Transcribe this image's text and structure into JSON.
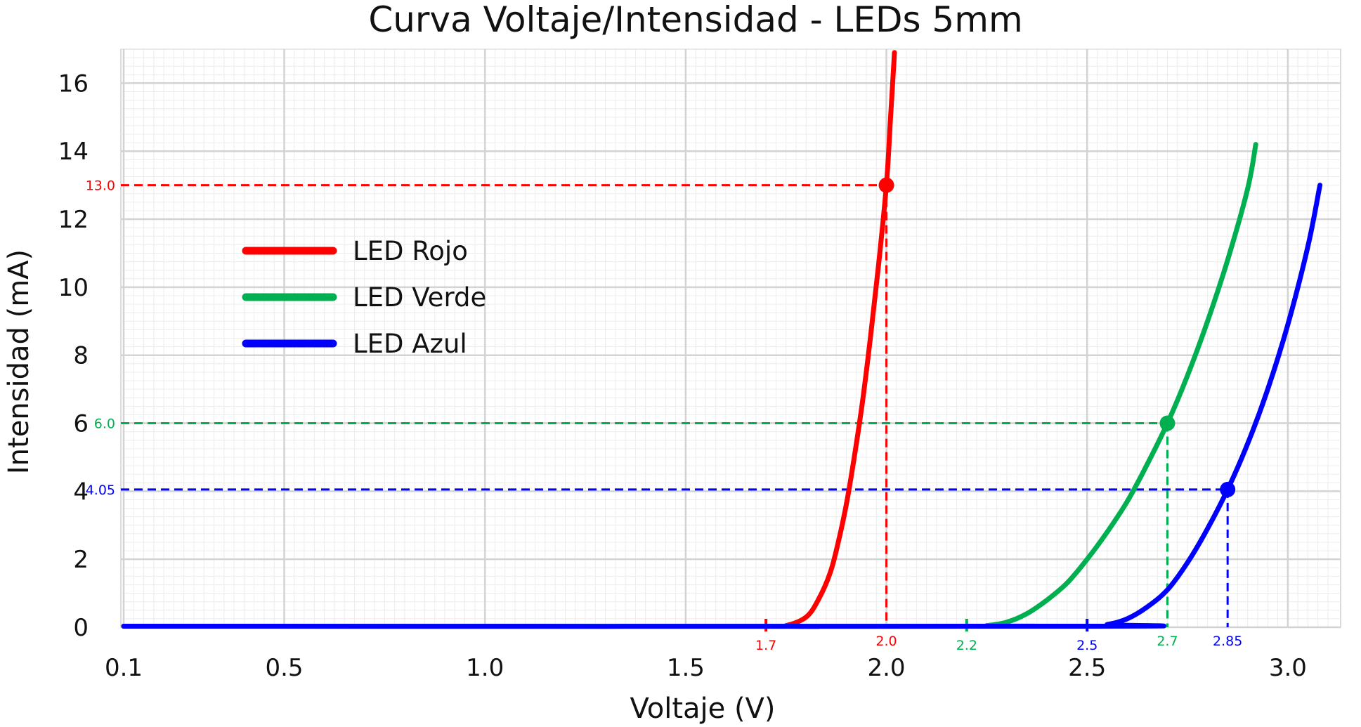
{
  "chart_data": {
    "type": "line",
    "title": "Curva Voltaje/Intensidad - LEDs 5mm",
    "xlabel": "Voltaje (V)",
    "ylabel": "Intensidad (mA)",
    "xlim": [
      0.1,
      3.1
    ],
    "ylim": [
      0,
      17
    ],
    "grid": true,
    "legend_position": "left",
    "x_ticks": [
      0.1,
      0.5,
      1.0,
      1.5,
      2.0,
      2.5,
      3.0
    ],
    "x_tick_labels": [
      "0.1",
      "0.5",
      "1.0",
      "1.5",
      "2.0",
      "2.5",
      "3.0"
    ],
    "y_ticks": [
      0,
      2,
      4,
      6,
      8,
      10,
      12,
      14,
      16
    ],
    "y_tick_labels": [
      "0",
      "2",
      "4",
      "6",
      "8",
      "10",
      "12",
      "14",
      "16"
    ],
    "series": [
      {
        "name": "LED Rojo",
        "legend_label": "LED Rojo",
        "color": "#ff0000",
        "x": [
          0.1,
          1.7,
          1.75,
          1.8,
          1.83,
          1.86,
          1.88,
          1.9,
          1.92,
          1.94,
          1.96,
          1.98,
          2.0,
          2.01,
          2.02
        ],
        "y": [
          0.03,
          0.03,
          0.05,
          0.3,
          0.8,
          1.6,
          2.5,
          3.6,
          5.0,
          6.6,
          8.5,
          10.6,
          13.0,
          14.9,
          16.9
        ]
      },
      {
        "name": "LED Verde",
        "legend_label": "LED Verde",
        "color": "#00b050",
        "x": [
          0.1,
          2.2,
          2.25,
          2.3,
          2.35,
          2.4,
          2.45,
          2.5,
          2.55,
          2.6,
          2.65,
          2.7,
          2.75,
          2.8,
          2.85,
          2.9,
          2.92
        ],
        "y": [
          0.03,
          0.03,
          0.05,
          0.15,
          0.4,
          0.8,
          1.3,
          2.0,
          2.8,
          3.7,
          4.8,
          6.0,
          7.4,
          9.0,
          10.8,
          12.9,
          14.2
        ]
      },
      {
        "name": "LED Azul",
        "legend_label": "LED Azul",
        "color": "#0000ff",
        "x": [
          0.1,
          2.5,
          2.55,
          2.6,
          2.65,
          2.7,
          2.75,
          2.8,
          2.85,
          2.9,
          2.95,
          3.0,
          3.05,
          3.08
        ],
        "y": [
          0.03,
          0.03,
          0.08,
          0.25,
          0.6,
          1.1,
          1.9,
          2.9,
          4.05,
          5.4,
          7.0,
          8.9,
          11.2,
          13.0
        ]
      }
    ],
    "markers": [
      {
        "series": "LED Rojo",
        "x": 2.0,
        "y": 13.0,
        "color": "#ff0000",
        "x_label": "2.0",
        "y_label": "13.0"
      },
      {
        "series": "LED Verde",
        "x": 2.7,
        "y": 6.0,
        "color": "#00b050",
        "x_label": "2.7",
        "y_label": "6.0"
      },
      {
        "series": "LED Azul",
        "x": 2.85,
        "y": 4.05,
        "color": "#0000ff",
        "x_label": "2.85",
        "y_label": "4.05"
      }
    ],
    "threshold_ticks": [
      {
        "series": "LED Rojo",
        "x": 1.7,
        "label": "1.7",
        "color": "#ff0000"
      },
      {
        "series": "LED Verde",
        "x": 2.2,
        "label": "2.2",
        "color": "#00b050"
      },
      {
        "series": "LED Azul",
        "x": 2.5,
        "label": "2.5",
        "color": "#0000ff"
      }
    ]
  }
}
